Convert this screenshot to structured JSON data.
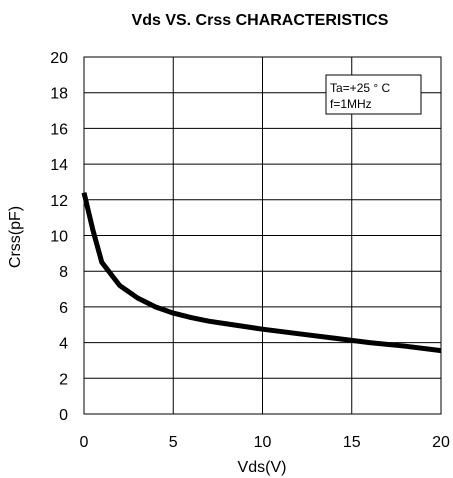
{
  "chart_data": {
    "type": "line",
    "title": "Vds  VS. Crss CHARACTERISTICS",
    "xlabel": "Vds(V)",
    "ylabel": "Crss(pF)",
    "xlim": [
      0,
      20
    ],
    "ylim": [
      0,
      20
    ],
    "x_ticks": [
      0,
      5,
      10,
      15,
      20
    ],
    "y_ticks": [
      0,
      2,
      4,
      6,
      8,
      10,
      12,
      14,
      16,
      18,
      20
    ],
    "grid": true,
    "annotation": [
      "Ta=+25 ° C",
      "f=1MHz"
    ],
    "annotation_placement": "top-right",
    "line_color": "#000000",
    "series": [
      {
        "x": [
          0,
          0.5,
          1,
          2,
          3,
          4,
          5,
          6,
          7,
          8,
          10,
          12,
          14,
          16,
          18,
          20
        ],
        "y": [
          12.4,
          10.3,
          8.5,
          7.2,
          6.5,
          6.0,
          5.65,
          5.4,
          5.2,
          5.05,
          4.75,
          4.5,
          4.25,
          4.0,
          3.8,
          3.55
        ]
      }
    ]
  }
}
